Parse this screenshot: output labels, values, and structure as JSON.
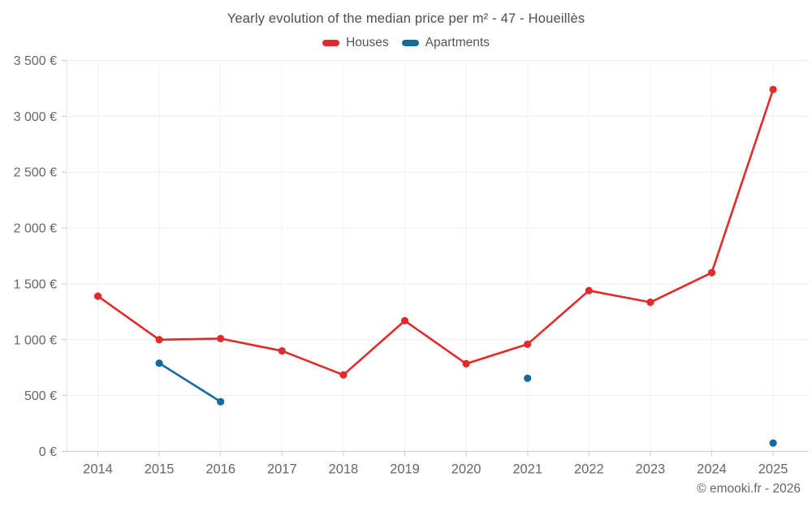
{
  "chart_data": {
    "type": "line",
    "title": "Yearly evolution of the median price per m² - 47 - Houeillès",
    "categories": [
      "2014",
      "2015",
      "2016",
      "2017",
      "2018",
      "2019",
      "2020",
      "2021",
      "2022",
      "2023",
      "2024",
      "2025"
    ],
    "series": [
      {
        "name": "Houses",
        "color": "#e02b2b",
        "values": [
          1390,
          1000,
          1010,
          900,
          685,
          1170,
          785,
          960,
          1440,
          1335,
          1600,
          3240
        ]
      },
      {
        "name": "Apartments",
        "color": "#1569a0",
        "values": [
          null,
          790,
          445,
          null,
          null,
          null,
          null,
          655,
          null,
          null,
          null,
          75
        ]
      }
    ],
    "ylim": [
      0,
      3500
    ],
    "ytick_step": 500,
    "ytick_labels": [
      "0 €",
      "500 €",
      "1 000 €",
      "1 500 €",
      "2 000 €",
      "2 500 €",
      "3 000 €",
      "3 500 €"
    ],
    "grid": true,
    "legend_position": "top",
    "currency": "€"
  },
  "footer": {
    "copyright": "© emooki.fr - 2026"
  },
  "colors": {
    "houses": "#e02b2b",
    "apartments": "#1569a0",
    "gridline": "#ededed",
    "axis_line": "#cccccc",
    "tick_text": "#666666",
    "title_text": "#4d4d4d"
  }
}
